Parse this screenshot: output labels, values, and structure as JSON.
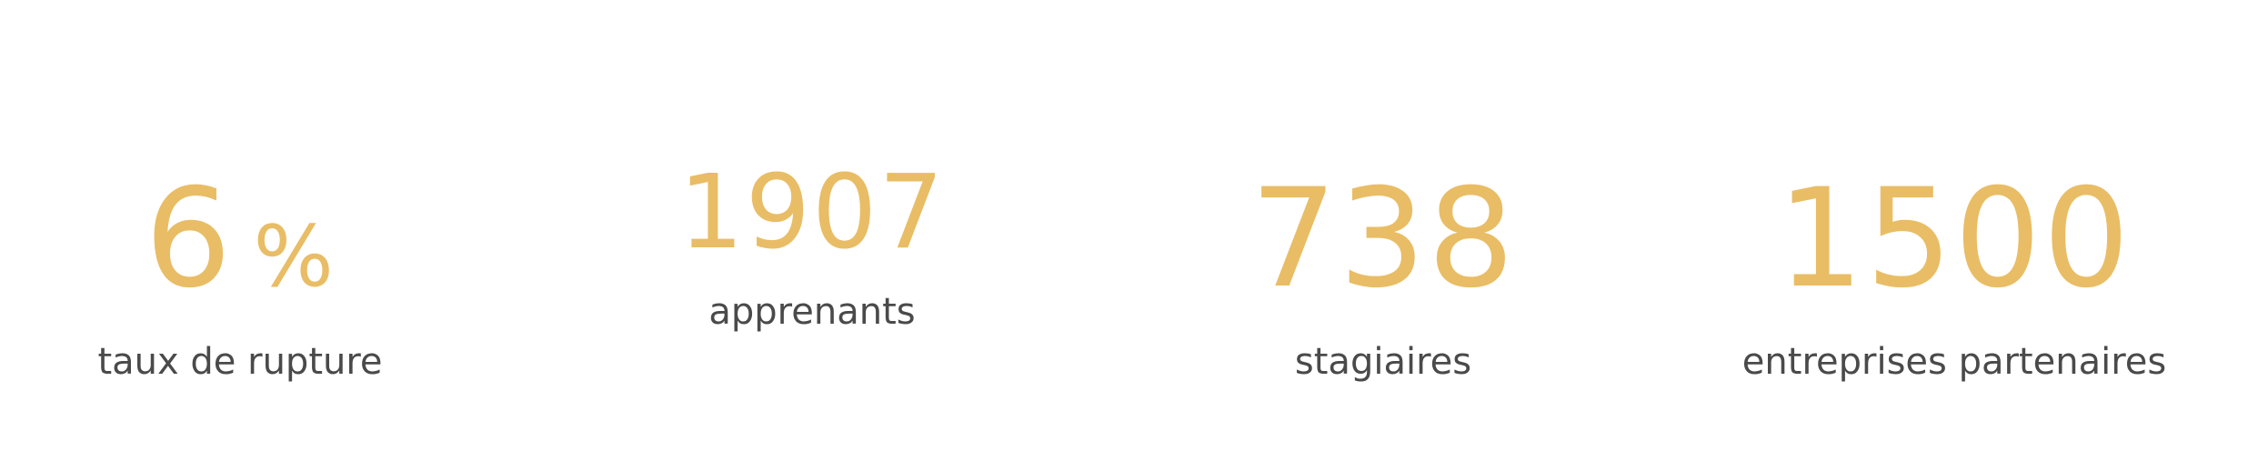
{
  "stats": [
    {
      "value": "6",
      "unit": "%",
      "label": "taux de rupture"
    },
    {
      "value": "1907",
      "label": "apprenants"
    },
    {
      "value": "738",
      "label": "stagiaires"
    },
    {
      "value": "1500",
      "label": "entreprises partenaires"
    }
  ],
  "colors": {
    "value": "#e9bd65",
    "label": "#4a4a4a",
    "background": "#ffffff"
  }
}
